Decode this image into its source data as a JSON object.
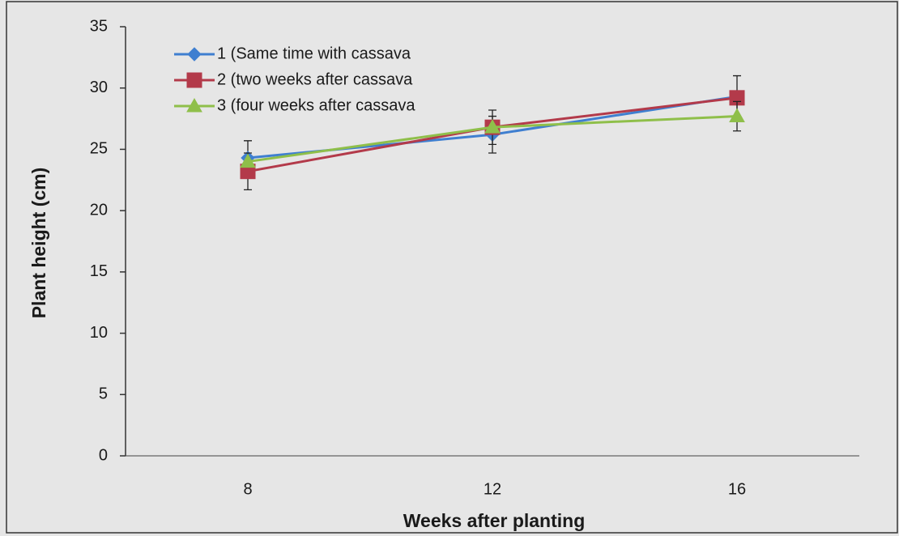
{
  "chart_data": {
    "type": "line",
    "x_label": "Weeks after planting",
    "y_label": "Plant height (cm)",
    "categories": [
      "8",
      "12",
      "16"
    ],
    "series": [
      {
        "name": "1 (Same time with cassava",
        "color": "#3f7fd0",
        "marker": "diamond",
        "values": [
          24.3,
          26.2,
          29.3
        ],
        "errors": [
          1.4,
          1.5,
          null
        ]
      },
      {
        "name": "2 (two weeks after cassava",
        "color": "#b33a4a",
        "marker": "square",
        "values": [
          23.2,
          26.8,
          29.2
        ],
        "errors": [
          1.5,
          1.4,
          1.8
        ]
      },
      {
        "name": "3 (four weeks after cassava",
        "color": "#8fbf4a",
        "marker": "triangle",
        "values": [
          24.0,
          26.8,
          27.7
        ],
        "errors": [
          null,
          null,
          1.2
        ]
      }
    ],
    "ylim": [
      0,
      35
    ],
    "yticks": [
      0,
      5,
      10,
      15,
      20,
      25,
      30,
      35
    ],
    "legend": "top-left"
  }
}
